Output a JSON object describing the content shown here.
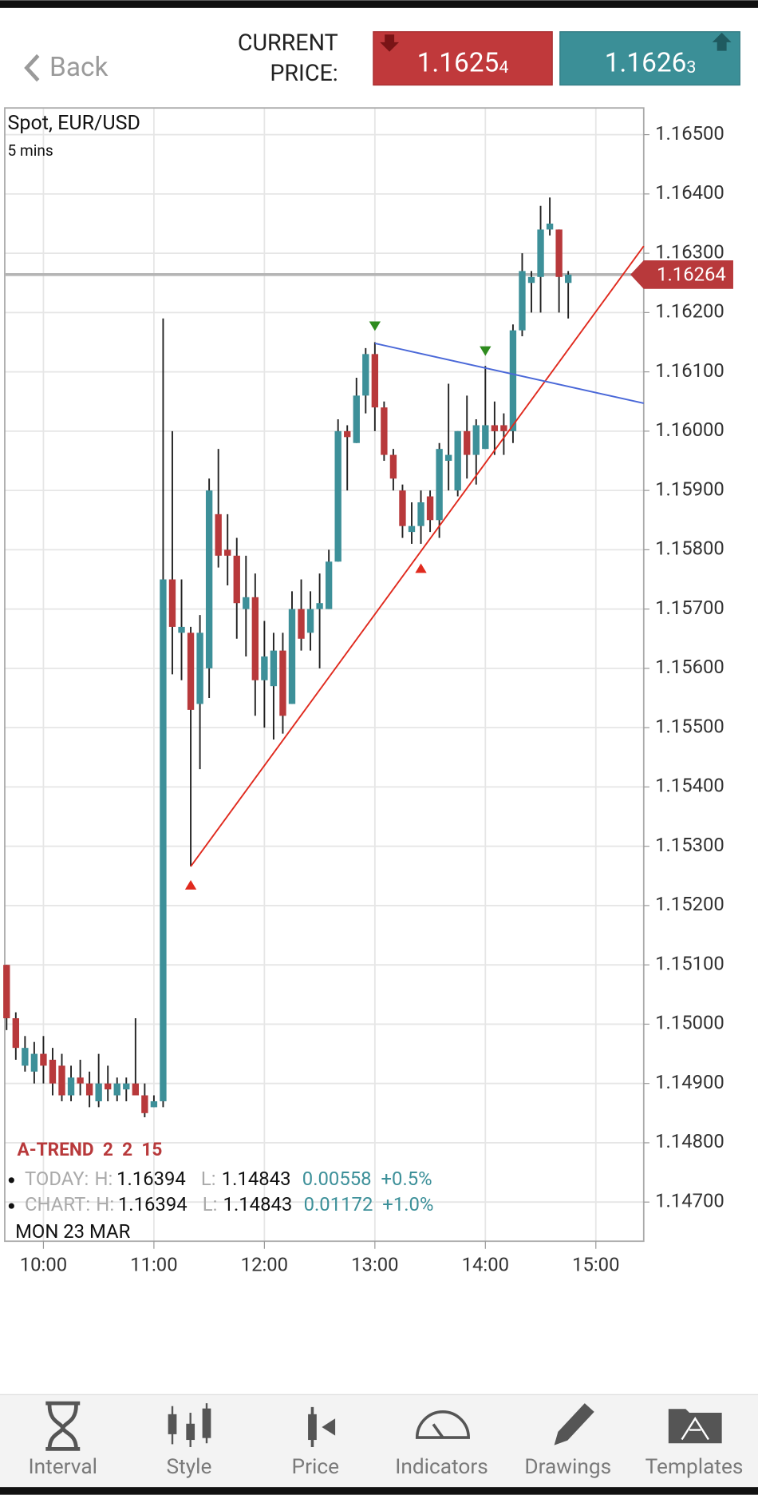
{
  "header": {
    "back": "Back",
    "current_price_label": [
      "CURRENT",
      "PRICE:"
    ],
    "bid": {
      "main": "1.1625",
      "pip": "4"
    },
    "ask": {
      "main": "1.1626",
      "pip": "3"
    }
  },
  "chart_data": {
    "type": "candlestick",
    "title": "Spot, EUR/USD",
    "subtitle": "5 mins",
    "up_color": "#3d9099",
    "down_color": "#b8393b",
    "x": [
      "09:40",
      "09:45",
      "09:50",
      "09:55",
      "10:00",
      "10:05",
      "10:10",
      "10:15",
      "10:20",
      "10:25",
      "10:30",
      "10:35",
      "10:40",
      "10:45",
      "10:50",
      "10:55",
      "11:00",
      "11:05",
      "11:10",
      "11:15",
      "11:20",
      "11:25",
      "11:30",
      "11:35",
      "11:40",
      "11:45",
      "11:50",
      "11:55",
      "12:00",
      "12:05",
      "12:10",
      "12:15",
      "12:20",
      "12:25",
      "12:30",
      "12:35",
      "12:40",
      "12:45",
      "12:50",
      "12:55",
      "13:00",
      "13:05",
      "13:10",
      "13:15",
      "13:20",
      "13:25",
      "13:30",
      "13:35",
      "13:40",
      "13:45",
      "13:50",
      "13:55",
      "14:00",
      "14:05",
      "14:10",
      "14:15",
      "14:20",
      "14:25",
      "14:30",
      "14:35",
      "14:40",
      "14:45"
    ],
    "open": [
      1.151,
      1.1501,
      1.1493,
      1.1492,
      1.1495,
      1.1494,
      1.1493,
      1.1488,
      1.1491,
      1.149,
      1.1487,
      1.149,
      1.1488,
      1.1489,
      1.149,
      1.1488,
      1.1486,
      1.1487,
      1.1575,
      1.1566,
      1.1566,
      1.1554,
      1.156,
      1.1586,
      1.158,
      1.1579,
      1.157,
      1.1572,
      1.1558,
      1.1557,
      1.1563,
      1.1554,
      1.157,
      1.1566,
      1.157,
      1.157,
      1.1578,
      1.16,
      1.1598,
      1.1606,
      1.1613,
      1.1604,
      1.1596,
      1.159,
      1.1583,
      1.1584,
      1.1589,
      1.1585,
      1.1595,
      1.159,
      1.16,
      1.1596,
      1.1597,
      1.1601,
      1.1601,
      1.16,
      1.1617,
      1.1625,
      1.1626,
      1.1634,
      1.1634,
      1.1625
    ],
    "high": [
      1.151,
      1.1502,
      1.1498,
      1.1497,
      1.1498,
      1.1496,
      1.1495,
      1.1493,
      1.1494,
      1.1492,
      1.1495,
      1.1493,
      1.1491,
      1.1491,
      1.1501,
      1.149,
      1.1488,
      1.1619,
      1.16,
      1.1575,
      1.1567,
      1.1569,
      1.1592,
      1.1597,
      1.1586,
      1.1582,
      1.1579,
      1.1576,
      1.1568,
      1.1566,
      1.1566,
      1.1573,
      1.1575,
      1.1573,
      1.1576,
      1.158,
      1.1602,
      1.1601,
      1.1609,
      1.1614,
      1.1615,
      1.1605,
      1.1597,
      1.1591,
      1.1588,
      1.159,
      1.159,
      1.1598,
      1.1608,
      1.16,
      1.1606,
      1.1602,
      1.1611,
      1.1605,
      1.1603,
      1.1618,
      1.163,
      1.1627,
      1.1638,
      1.16394,
      1.1634,
      1.1627
    ],
    "low": [
      1.1499,
      1.1494,
      1.1492,
      1.149,
      1.149,
      1.1488,
      1.1487,
      1.1487,
      1.1488,
      1.1486,
      1.1486,
      1.1487,
      1.1487,
      1.1487,
      1.1488,
      1.14843,
      1.1486,
      1.1486,
      1.1559,
      1.1558,
      1.15266,
      1.1543,
      1.1555,
      1.1577,
      1.1574,
      1.1565,
      1.1562,
      1.1552,
      1.155,
      1.1548,
      1.1549,
      1.1554,
      1.1563,
      1.1563,
      1.156,
      1.157,
      1.1578,
      1.159,
      1.1598,
      1.1603,
      1.16,
      1.1595,
      1.159,
      1.1582,
      1.1581,
      1.1581,
      1.1583,
      1.1582,
      1.159,
      1.1589,
      1.1592,
      1.1591,
      1.1597,
      1.1596,
      1.1596,
      1.1598,
      1.1616,
      1.162,
      1.162,
      1.1633,
      1.162,
      1.1619
    ],
    "close": [
      1.1501,
      1.1496,
      1.1496,
      1.1495,
      1.1493,
      1.149,
      1.1488,
      1.1491,
      1.149,
      1.1488,
      1.149,
      1.1489,
      1.149,
      1.149,
      1.1488,
      1.1485,
      1.1487,
      1.1575,
      1.1567,
      1.1567,
      1.1553,
      1.1566,
      1.159,
      1.1579,
      1.1579,
      1.1571,
      1.1572,
      1.1558,
      1.1562,
      1.1563,
      1.1552,
      1.157,
      1.1565,
      1.157,
      1.1571,
      1.1578,
      1.16,
      1.1599,
      1.1606,
      1.1613,
      1.1604,
      1.1596,
      1.1592,
      1.1584,
      1.1584,
      1.1588,
      1.1585,
      1.1597,
      1.1596,
      1.16,
      1.1596,
      1.1601,
      1.1601,
      1.16,
      1.16,
      1.1617,
      1.1627,
      1.1626,
      1.1634,
      1.1635,
      1.1626,
      1.16264
    ],
    "xlim": [
      "09:39",
      "15:26"
    ],
    "xticks": [
      "10:00",
      "11:00",
      "12:00",
      "13:00",
      "14:00",
      "15:00"
    ],
    "ylim": [
      1.14634,
      1.16545
    ],
    "yticks": [
      {
        "value": 1.165,
        "label": "1.16500"
      },
      {
        "value": 1.164,
        "label": "1.16400"
      },
      {
        "value": 1.163,
        "label": "1.16300"
      },
      {
        "value": 1.162,
        "label": "1.16200"
      },
      {
        "value": 1.161,
        "label": "1.16100"
      },
      {
        "value": 1.16,
        "label": "1.16000"
      },
      {
        "value": 1.159,
        "label": "1.15900"
      },
      {
        "value": 1.158,
        "label": "1.15800"
      },
      {
        "value": 1.157,
        "label": "1.15700"
      },
      {
        "value": 1.156,
        "label": "1.15600"
      },
      {
        "value": 1.155,
        "label": "1.15500"
      },
      {
        "value": 1.154,
        "label": "1.15400"
      },
      {
        "value": 1.153,
        "label": "1.15300"
      },
      {
        "value": 1.152,
        "label": "1.15200"
      },
      {
        "value": 1.151,
        "label": "1.15100"
      },
      {
        "value": 1.15,
        "label": "1.15000"
      },
      {
        "value": 1.149,
        "label": "1.14900"
      },
      {
        "value": 1.148,
        "label": "1.14800"
      },
      {
        "value": 1.147,
        "label": "1.14700"
      }
    ],
    "grid": true,
    "last_price": 1.16264,
    "last_price_color": "#b8393b",
    "trendlines": [
      {
        "color": "#e02a1e",
        "x": [
          "11:20",
          "15:26"
        ],
        "y": [
          1.15266,
          1.16312
        ]
      },
      {
        "color": "#4a68d8",
        "x": [
          "13:00",
          "15:26"
        ],
        "y": [
          1.16148,
          1.16047
        ]
      }
    ],
    "markers": [
      {
        "direction": "down",
        "color": "#2e8b1e",
        "x": "13:00",
        "y": 1.16177
      },
      {
        "direction": "down",
        "color": "#2e8b1e",
        "x": "14:00",
        "y": 1.16135
      },
      {
        "direction": "up",
        "color": "#e02a1e",
        "x": "11:20",
        "y": 1.15235
      },
      {
        "direction": "up",
        "color": "#e02a1e",
        "x": "13:25",
        "y": 1.15769
      }
    ],
    "indicator": "A-TREND  2  2  15",
    "stats": [
      {
        "label": "TODAY:",
        "h": "H:",
        "high": "1.16394",
        "l": "L:",
        "low": "1.14843",
        "change": "0.00558",
        "pct": "+0.5%"
      },
      {
        "label": "CHART:",
        "h": "H:",
        "high": "1.16394",
        "l": "L:",
        "low": "1.14843",
        "change": "0.01172",
        "pct": "+1.0%"
      }
    ],
    "date": "MON 23 MAR"
  },
  "toolbar": [
    "Interval",
    "Style",
    "Price",
    "Indicators",
    "Drawings",
    "Templates"
  ]
}
